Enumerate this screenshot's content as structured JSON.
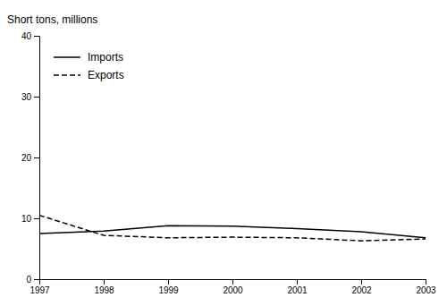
{
  "chart_data": {
    "type": "line",
    "y_label": "Short tons, millions",
    "x": [
      1997,
      1998,
      1999,
      2000,
      2001,
      2002,
      2003
    ],
    "series": [
      {
        "name": "Imports",
        "color": "#000000",
        "line_style": "solid",
        "values": [
          7.5,
          7.9,
          8.8,
          8.7,
          8.3,
          7.8,
          6.8
        ]
      },
      {
        "name": "Exports",
        "color": "#000000",
        "line_style": "dashed",
        "values": [
          10.5,
          7.2,
          6.8,
          6.9,
          6.8,
          6.3,
          6.6
        ]
      }
    ],
    "xlim": [
      1997,
      2003
    ],
    "xticks": [
      1997,
      1998,
      1999,
      2000,
      2001,
      2002,
      2003
    ],
    "ylim": [
      0,
      40
    ],
    "yticks": [
      0,
      10,
      20,
      30,
      40
    ],
    "grid": false,
    "legend": "upper left"
  }
}
